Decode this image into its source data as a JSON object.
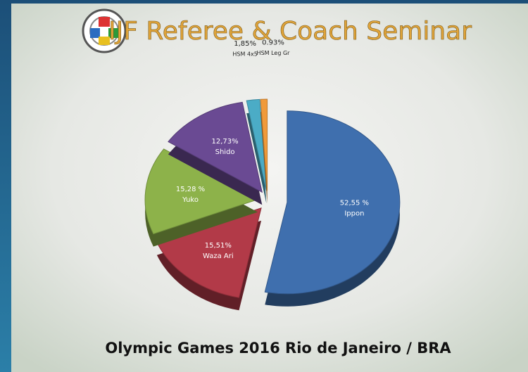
{
  "chart_data": {
    "type": "pie",
    "title": "IJF Referee & Coach Seminar",
    "subtitle": "Olympic Games 2016 Rio de Janeiro / BRA",
    "categories": [
      "Ippon",
      "Waza Ari",
      "Yuko",
      "Shido",
      "HSM 4x5",
      "HSM Leg Gr"
    ],
    "values": [
      52.55,
      15.51,
      15.28,
      12.73,
      1.85,
      0.93
    ],
    "value_labels": [
      "52,55 %",
      "15,51%",
      "15,28 %",
      "12,73%",
      "1,85%",
      "0.93%"
    ],
    "colors": [
      "#3f6fae",
      "#b23a48",
      "#8db24a",
      "#6a4a93",
      "#4bacc6",
      "#f09a3a"
    ]
  }
}
